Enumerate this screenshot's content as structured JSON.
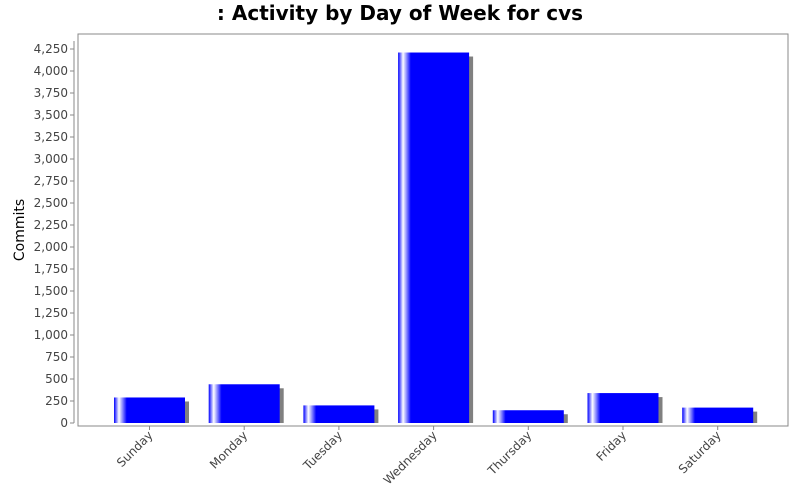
{
  "chart_data": {
    "type": "bar",
    "title": ": Activity by Day of Week for cvs",
    "xlabel": "",
    "ylabel": "Commits",
    "categories": [
      "Sunday",
      "Monday",
      "Tuesday",
      "Wednesday",
      "Thursday",
      "Friday",
      "Saturday"
    ],
    "values": [
      290,
      440,
      200,
      4210,
      145,
      340,
      175
    ],
    "ylim": [
      0,
      4400
    ],
    "yticks": [
      0,
      250,
      500,
      750,
      1000,
      1250,
      1500,
      1750,
      2000,
      2250,
      2500,
      2750,
      3000,
      3250,
      3500,
      3750,
      4000,
      4250
    ],
    "ytick_labels": [
      "0",
      "250",
      "500",
      "750",
      "1,000",
      "1,250",
      "1,500",
      "1,750",
      "2,000",
      "2,250",
      "2,500",
      "2,750",
      "3,000",
      "3,250",
      "3,500",
      "3,750",
      "4,000",
      "4,250"
    ],
    "grid": false,
    "legend": "none",
    "colors": {
      "bar": "#0000ff",
      "bar_highlight": "#ffffff",
      "shadow": "#808080",
      "axis": "#888888",
      "plot_border": "#888888",
      "tick_text": "#444444"
    }
  }
}
